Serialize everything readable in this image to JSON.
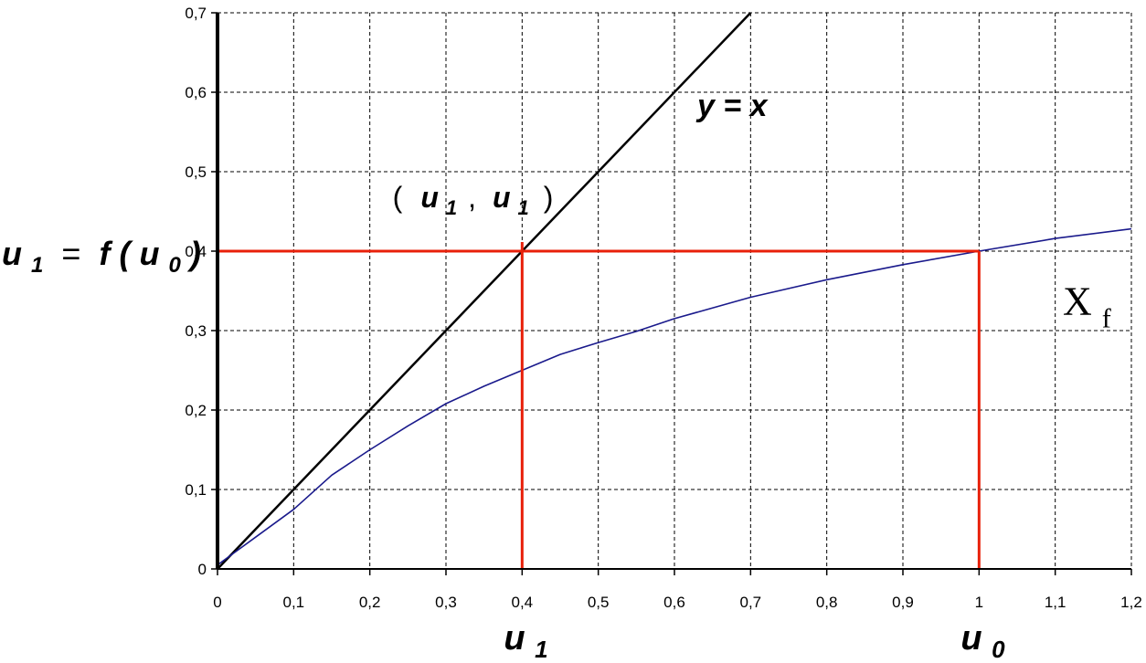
{
  "chart_data": {
    "type": "line",
    "xlim": [
      0,
      1.2
    ],
    "ylim": [
      0,
      0.7
    ],
    "x_ticks": [
      "0",
      "0,1",
      "0,2",
      "0,3",
      "0,4",
      "0,5",
      "0,6",
      "0,7",
      "0,8",
      "0,9",
      "1",
      "1,1",
      "1,2"
    ],
    "y_ticks": [
      "0",
      "0,1",
      "0,2",
      "0,3",
      "0,4",
      "0,5",
      "0,6",
      "0,7"
    ],
    "grid": true,
    "series": [
      {
        "color": "#000000",
        "points": [
          [
            0,
            0
          ],
          [
            0.7,
            0.7
          ]
        ]
      },
      {
        "color": "#1a1a8c",
        "points": [
          [
            0,
            0.005
          ],
          [
            0.05,
            0.04
          ],
          [
            0.1,
            0.075
          ],
          [
            0.15,
            0.118
          ],
          [
            0.2,
            0.15
          ],
          [
            0.25,
            0.18
          ],
          [
            0.3,
            0.208
          ],
          [
            0.35,
            0.23
          ],
          [
            0.4,
            0.25
          ],
          [
            0.45,
            0.27
          ],
          [
            0.5,
            0.285
          ],
          [
            0.55,
            0.299
          ],
          [
            0.6,
            0.315
          ],
          [
            0.7,
            0.342
          ],
          [
            0.8,
            0.364
          ],
          [
            0.9,
            0.383
          ],
          [
            1.0,
            0.4
          ],
          [
            1.1,
            0.416
          ],
          [
            1.2,
            0.428
          ]
        ]
      }
    ],
    "guides": {
      "color": "#e8200a",
      "u0": 1.0,
      "u1": 0.4
    },
    "annotations": {
      "identity_label": {
        "text": "y = x",
        "x": 0.63,
        "y": 0.57
      },
      "point_label": {
        "open": "(",
        "u1a": "u",
        "sub_a": "1",
        "comma": ",",
        "u1b": "u",
        "sub_b": "1",
        "close": ")",
        "x": 0.23,
        "y": 0.455
      },
      "curve_label": {
        "main": "X",
        "sub": "f",
        "x": 1.11,
        "y": 0.32
      },
      "y_label": {
        "u": "u",
        "sub1": "1",
        "eq": " = ",
        "f": "f",
        "open": "(",
        "u0": "u",
        "sub0": "0",
        "close": ")"
      },
      "x_label_u1": {
        "u": "u",
        "sub": "1"
      },
      "x_label_u0": {
        "u": "u",
        "sub": "0"
      }
    }
  }
}
